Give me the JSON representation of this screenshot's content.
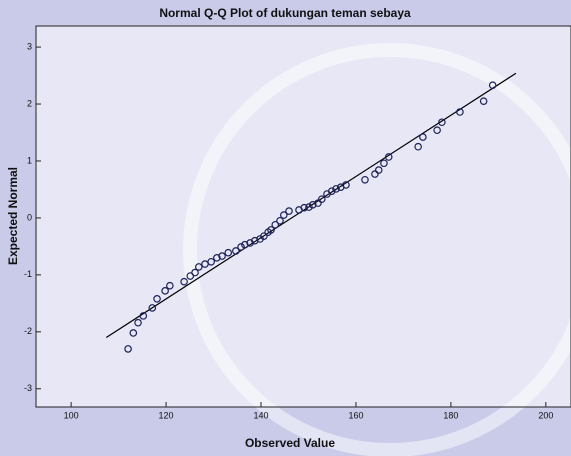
{
  "chart_data": {
    "type": "scatter",
    "title": "Normal Q-Q Plot of dukungan teman sebaya",
    "x_label": "Observed Value",
    "y_label": "Expected Normal",
    "x": [
      112,
      113.1,
      114.1,
      115.2,
      117.1,
      118.1,
      119.8,
      120.8,
      123.8,
      125.1,
      126.1,
      126.9,
      128.2,
      129.5,
      130.7,
      131.8,
      133.1,
      134.7,
      135.8,
      136.6,
      137.7,
      138.7,
      139.8,
      140.6,
      141.5,
      142.1,
      143.0,
      144.0,
      144.8,
      145.9,
      148.0,
      149.1,
      150.1,
      150.9,
      152.0,
      152.8,
      153.9,
      154.9,
      155.8,
      156.8,
      157.9,
      161.9,
      164.0,
      164.8,
      165.9,
      166.9,
      173.1,
      174.1,
      177.1,
      178.1,
      181.9,
      186.9,
      188.8
    ],
    "values": [
      -2.3,
      -2.02,
      -1.84,
      -1.72,
      -1.58,
      -1.42,
      -1.28,
      -1.19,
      -1.12,
      -1.02,
      -0.96,
      -0.86,
      -0.81,
      -0.77,
      -0.7,
      -0.67,
      -0.61,
      -0.58,
      -0.51,
      -0.47,
      -0.44,
      -0.4,
      -0.37,
      -0.32,
      -0.25,
      -0.21,
      -0.12,
      -0.05,
      0.05,
      0.12,
      0.14,
      0.18,
      0.19,
      0.23,
      0.26,
      0.33,
      0.42,
      0.47,
      0.51,
      0.54,
      0.58,
      0.67,
      0.77,
      0.84,
      0.96,
      1.07,
      1.25,
      1.42,
      1.54,
      1.68,
      1.86,
      2.05,
      2.33
    ],
    "color": "#1c2157",
    "reference_line": {
      "x": [
        107.4,
        193.7
      ],
      "y": [
        -2.1,
        2.54
      ],
      "color": "#000000"
    },
    "xlim": [
      92.6,
      205.3
    ],
    "ylim": [
      -3.32,
      3.37
    ],
    "xticks": [
      100,
      120,
      140,
      160,
      180,
      200
    ],
    "yticks": [
      3,
      2,
      1,
      0,
      -1,
      -2,
      -3
    ]
  }
}
